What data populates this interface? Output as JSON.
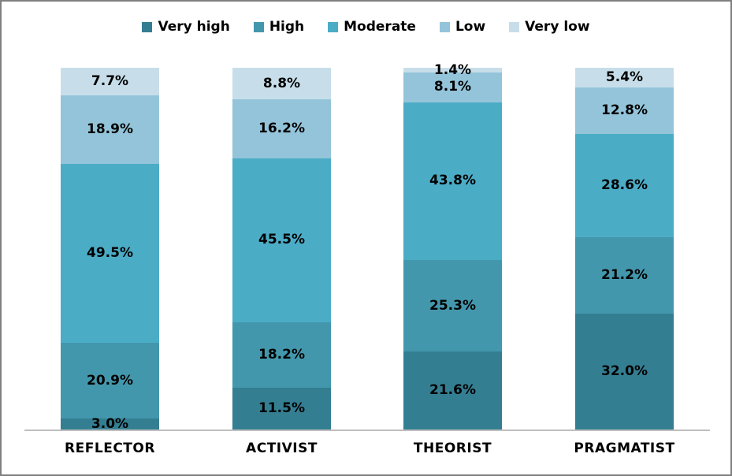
{
  "chart_data": {
    "type": "bar",
    "subtype": "stacked-100-percent",
    "orientation": "vertical",
    "title": "",
    "xlabel": "",
    "ylabel": "",
    "ylim": [
      0,
      100
    ],
    "grid": false,
    "legend_position": "top",
    "value_suffix": "%",
    "categories": [
      "REFLECTOR",
      "ACTIVIST",
      "THEORIST",
      "PRAGMATIST"
    ],
    "series": [
      {
        "name": "Very high",
        "color": "#347E92",
        "values": [
          3.0,
          11.5,
          21.6,
          32.0
        ],
        "display": [
          "3.0%",
          "11.5%",
          "21.6%",
          "32.0%"
        ]
      },
      {
        "name": "High",
        "color": "#4397AC",
        "values": [
          20.9,
          18.2,
          25.3,
          21.2
        ],
        "display": [
          "20.9%",
          "18.2%",
          "25.3%",
          "21.2%"
        ]
      },
      {
        "name": "Moderate",
        "color": "#4BACC6",
        "values": [
          49.5,
          45.5,
          43.8,
          28.6
        ],
        "display": [
          "49.5%",
          "45.5%",
          "43.8%",
          "28.6%"
        ]
      },
      {
        "name": "Low",
        "color": "#93C4D9",
        "values": [
          18.9,
          16.2,
          8.1,
          12.8
        ],
        "display": [
          "18.9%",
          "16.2%",
          "8.1%",
          "12.8%"
        ]
      },
      {
        "name": "Very low",
        "color": "#C7DEEA",
        "values": [
          7.7,
          8.8,
          1.4,
          5.4
        ],
        "display": [
          "7.7%",
          "8.8%",
          "1.4%",
          "5.4%"
        ]
      }
    ],
    "colors": {
      "frame_border": "#808080",
      "axis_line": "#BFBFBF",
      "label_text": "#000000",
      "background": "#FFFFFF"
    }
  }
}
